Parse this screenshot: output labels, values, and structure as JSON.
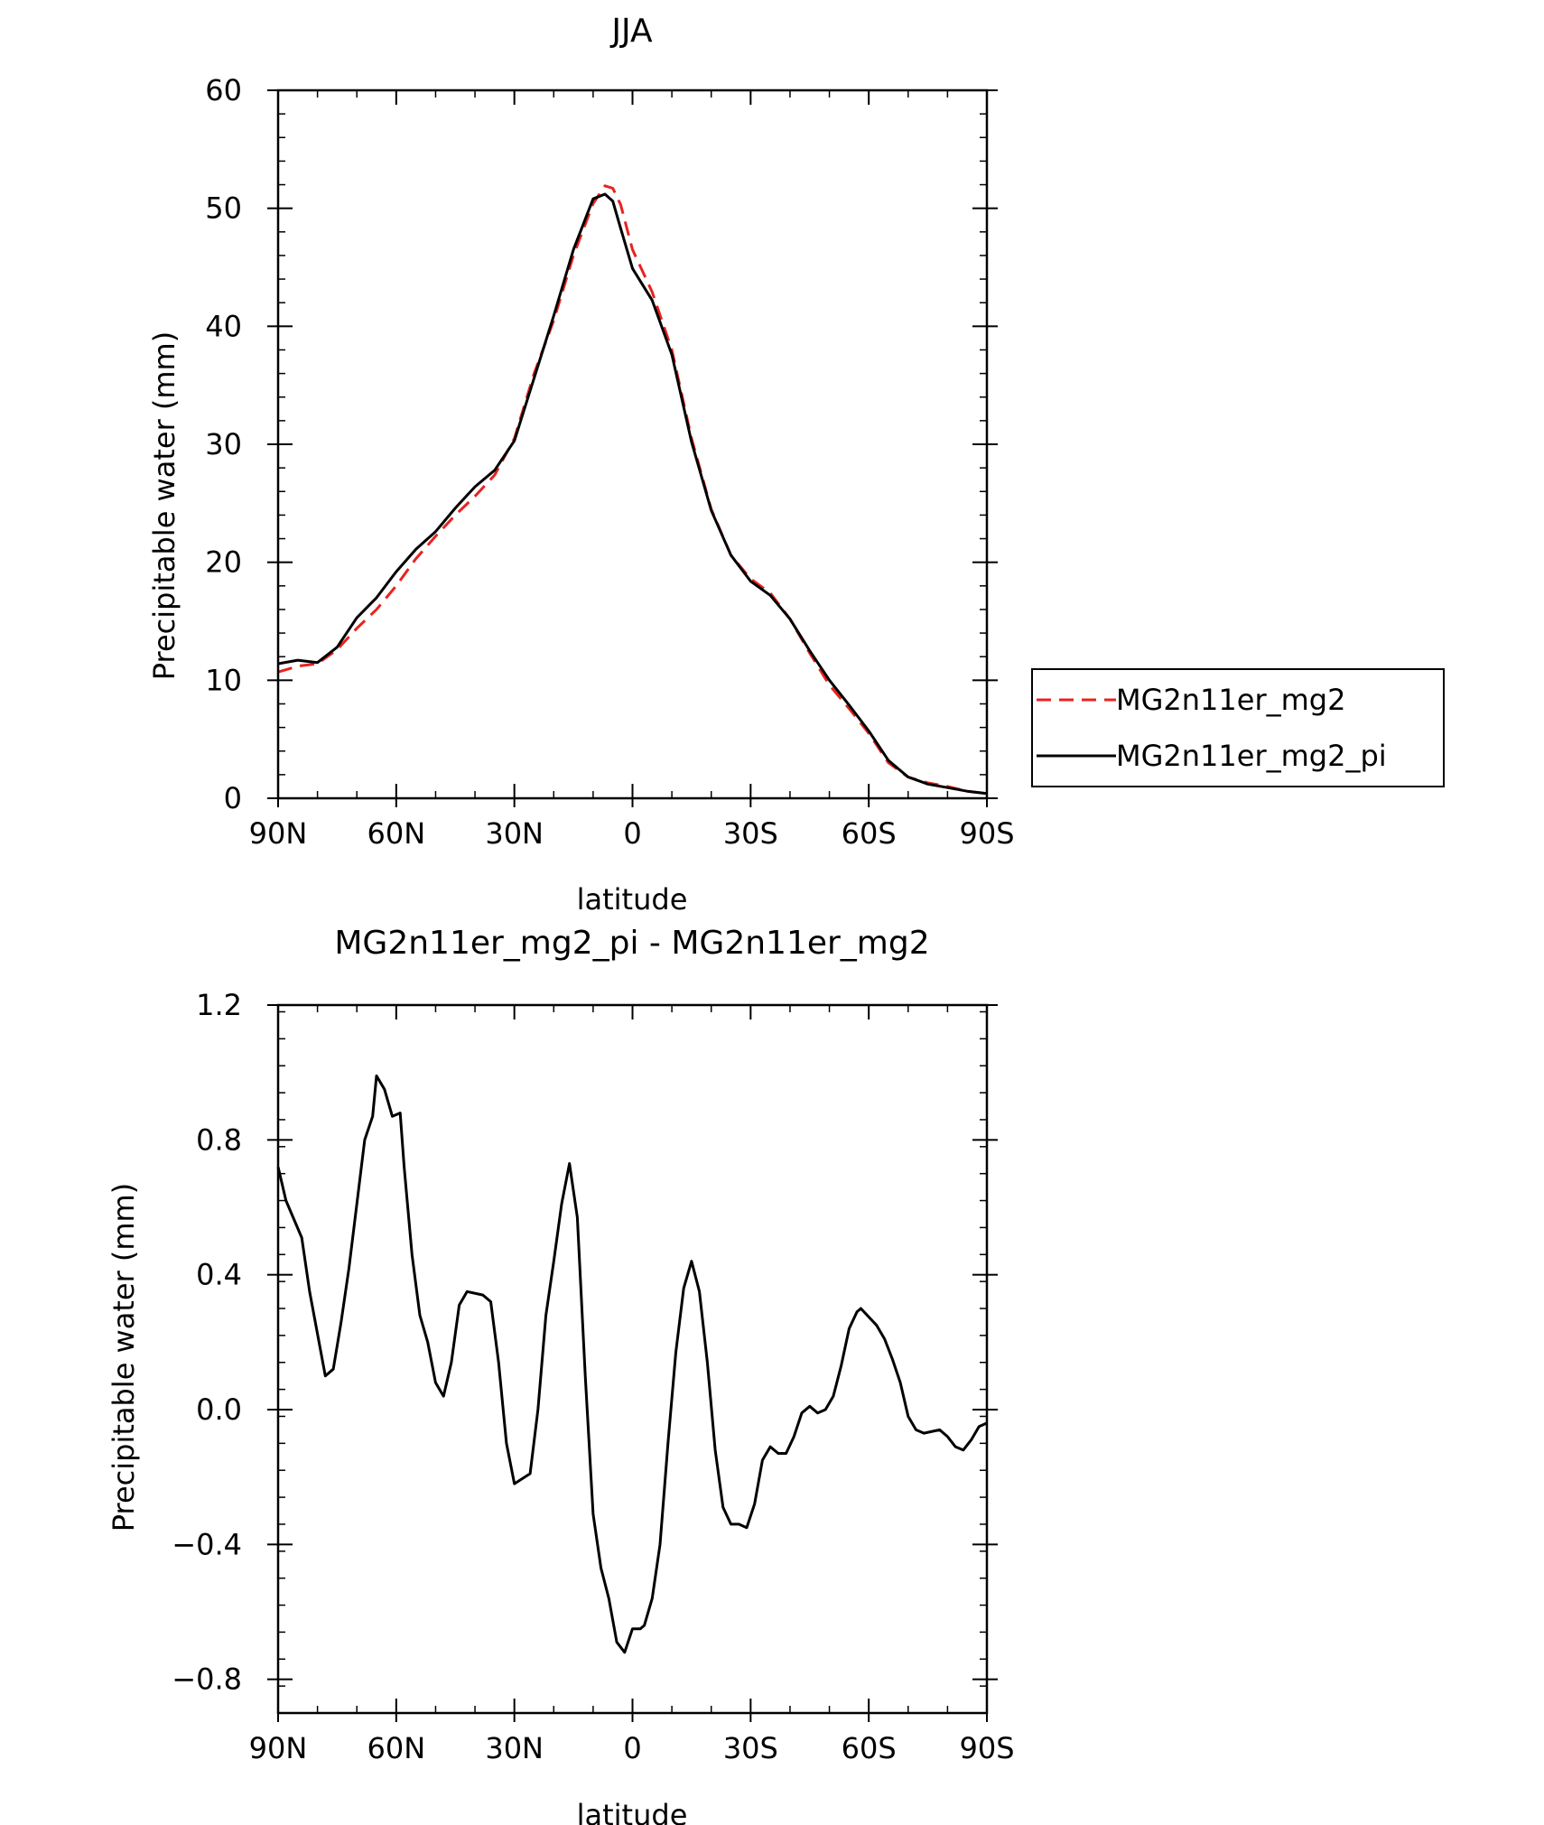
{
  "chart_data": [
    {
      "type": "line",
      "title": "JJA",
      "xlabel": "latitude",
      "ylabel": "Precipitable water (mm)",
      "xlim": [
        90,
        -90
      ],
      "ylim": [
        0,
        60
      ],
      "x_ticks": [
        90,
        60,
        30,
        0,
        -30,
        -60,
        -90
      ],
      "x_tick_labels": [
        "90N",
        "60N",
        "30N",
        "0",
        "30S",
        "60S",
        "90S"
      ],
      "y_ticks": [
        0,
        10,
        20,
        30,
        40,
        50,
        60
      ],
      "y_tick_labels": [
        "0",
        "10",
        "20",
        "30",
        "40",
        "50",
        "60"
      ],
      "legend_position": "right",
      "series": [
        {
          "name": "MG2n11er_mg2",
          "color": "#e8231f",
          "dash": "dashed",
          "points": [
            [
              90,
              10.7
            ],
            [
              85,
              11.2
            ],
            [
              80,
              11.4
            ],
            [
              75,
              12.6
            ],
            [
              70,
              14.4
            ],
            [
              65,
              16.0
            ],
            [
              60,
              18.0
            ],
            [
              55,
              20.3
            ],
            [
              50,
              22.2
            ],
            [
              45,
              24.0
            ],
            [
              40,
              25.6
            ],
            [
              35,
              27.4
            ],
            [
              30,
              30.5
            ],
            [
              25,
              36.0
            ],
            [
              20,
              40.5
            ],
            [
              15,
              46.0
            ],
            [
              10,
              50.4
            ],
            [
              7,
              51.9
            ],
            [
              5,
              51.7
            ],
            [
              3,
              50.3
            ],
            [
              0,
              46.5
            ],
            [
              -5,
              42.9
            ],
            [
              -10,
              38.0
            ],
            [
              -15,
              30.5
            ],
            [
              -20,
              24.5
            ],
            [
              -25,
              20.6
            ],
            [
              -30,
              18.6
            ],
            [
              -35,
              17.4
            ],
            [
              -40,
              15.2
            ],
            [
              -45,
              12.3
            ],
            [
              -50,
              9.6
            ],
            [
              -55,
              7.6
            ],
            [
              -60,
              5.5
            ],
            [
              -65,
              3.0
            ],
            [
              -70,
              1.8
            ],
            [
              -75,
              1.3
            ],
            [
              -80,
              1.0
            ],
            [
              -85,
              0.6
            ],
            [
              -90,
              0.4
            ]
          ]
        },
        {
          "name": "MG2n11er_mg2_pi",
          "color": "#000000",
          "dash": "solid",
          "points": [
            [
              90,
              11.4
            ],
            [
              85,
              11.7
            ],
            [
              80,
              11.5
            ],
            [
              75,
              12.8
            ],
            [
              70,
              15.3
            ],
            [
              65,
              17.0
            ],
            [
              60,
              19.2
            ],
            [
              55,
              21.1
            ],
            [
              50,
              22.6
            ],
            [
              45,
              24.6
            ],
            [
              40,
              26.4
            ],
            [
              35,
              27.8
            ],
            [
              30,
              30.3
            ],
            [
              25,
              35.6
            ],
            [
              20,
              40.9
            ],
            [
              15,
              46.5
            ],
            [
              10,
              50.8
            ],
            [
              7,
              51.2
            ],
            [
              5,
              50.6
            ],
            [
              3,
              48.3
            ],
            [
              0,
              44.9
            ],
            [
              -5,
              42.2
            ],
            [
              -10,
              37.6
            ],
            [
              -15,
              30.2
            ],
            [
              -20,
              24.4
            ],
            [
              -25,
              20.6
            ],
            [
              -30,
              18.4
            ],
            [
              -35,
              17.2
            ],
            [
              -40,
              15.2
            ],
            [
              -45,
              12.5
            ],
            [
              -50,
              10.0
            ],
            [
              -55,
              7.9
            ],
            [
              -60,
              5.7
            ],
            [
              -65,
              3.2
            ],
            [
              -70,
              1.8
            ],
            [
              -75,
              1.2
            ],
            [
              -80,
              0.9
            ],
            [
              -85,
              0.6
            ],
            [
              -90,
              0.4
            ]
          ]
        }
      ]
    },
    {
      "type": "line",
      "title": "MG2n11er_mg2_pi - MG2n11er_mg2",
      "xlabel": "latitude",
      "ylabel": "Precipitable water (mm)",
      "xlim": [
        90,
        -90
      ],
      "ylim": [
        -0.9,
        1.2
      ],
      "x_ticks": [
        90,
        60,
        30,
        0,
        -30,
        -60,
        -90
      ],
      "x_tick_labels": [
        "90N",
        "60N",
        "30N",
        "0",
        "30S",
        "60S",
        "90S"
      ],
      "y_ticks": [
        -0.8,
        -0.4,
        0.0,
        0.4,
        0.8,
        1.2
      ],
      "y_tick_labels": [
        "−0.8",
        "−0.4",
        "0.0",
        "0.4",
        "0.8",
        "1.2"
      ],
      "series": [
        {
          "color": "#000000",
          "dash": "solid",
          "points": [
            [
              90,
              0.72
            ],
            [
              88,
              0.62
            ],
            [
              84,
              0.51
            ],
            [
              82,
              0.35
            ],
            [
              78,
              0.1
            ],
            [
              76,
              0.12
            ],
            [
              74,
              0.26
            ],
            [
              72,
              0.42
            ],
            [
              70,
              0.61
            ],
            [
              68,
              0.8
            ],
            [
              66,
              0.87
            ],
            [
              65,
              0.99
            ],
            [
              63,
              0.95
            ],
            [
              61,
              0.87
            ],
            [
              59,
              0.88
            ],
            [
              58,
              0.72
            ],
            [
              56,
              0.46
            ],
            [
              54,
              0.28
            ],
            [
              52,
              0.2
            ],
            [
              50,
              0.08
            ],
            [
              48,
              0.04
            ],
            [
              46,
              0.14
            ],
            [
              44,
              0.31
            ],
            [
              42,
              0.35
            ],
            [
              38,
              0.34
            ],
            [
              36,
              0.32
            ],
            [
              34,
              0.14
            ],
            [
              32,
              -0.1
            ],
            [
              30,
              -0.22
            ],
            [
              26,
              -0.19
            ],
            [
              24,
              0.0
            ],
            [
              22,
              0.28
            ],
            [
              20,
              0.44
            ],
            [
              18,
              0.61
            ],
            [
              16,
              0.73
            ],
            [
              14,
              0.57
            ],
            [
              12,
              0.1
            ],
            [
              10,
              -0.31
            ],
            [
              8,
              -0.47
            ],
            [
              6,
              -0.56
            ],
            [
              4,
              -0.69
            ],
            [
              2,
              -0.72
            ],
            [
              0,
              -0.65
            ],
            [
              -2,
              -0.65
            ],
            [
              -3,
              -0.64
            ],
            [
              -5,
              -0.56
            ],
            [
              -7,
              -0.4
            ],
            [
              -9,
              -0.1
            ],
            [
              -11,
              0.17
            ],
            [
              -13,
              0.36
            ],
            [
              -15,
              0.44
            ],
            [
              -17,
              0.35
            ],
            [
              -19,
              0.14
            ],
            [
              -21,
              -0.12
            ],
            [
              -23,
              -0.29
            ],
            [
              -25,
              -0.34
            ],
            [
              -27,
              -0.34
            ],
            [
              -29,
              -0.35
            ],
            [
              -31,
              -0.28
            ],
            [
              -33,
              -0.15
            ],
            [
              -35,
              -0.11
            ],
            [
              -37,
              -0.13
            ],
            [
              -39,
              -0.13
            ],
            [
              -41,
              -0.08
            ],
            [
              -43,
              -0.01
            ],
            [
              -45,
              0.01
            ],
            [
              -47,
              -0.01
            ],
            [
              -49,
              0.0
            ],
            [
              -51,
              0.04
            ],
            [
              -53,
              0.13
            ],
            [
              -55,
              0.24
            ],
            [
              -57,
              0.29
            ],
            [
              -58,
              0.3
            ],
            [
              -62,
              0.25
            ],
            [
              -64,
              0.21
            ],
            [
              -66,
              0.15
            ],
            [
              -68,
              0.08
            ],
            [
              -70,
              -0.02
            ],
            [
              -72,
              -0.06
            ],
            [
              -74,
              -0.07
            ],
            [
              -78,
              -0.06
            ],
            [
              -80,
              -0.08
            ],
            [
              -82,
              -0.11
            ],
            [
              -84,
              -0.12
            ],
            [
              -86,
              -0.09
            ],
            [
              -88,
              -0.05
            ],
            [
              -90,
              -0.04
            ]
          ]
        }
      ]
    }
  ]
}
